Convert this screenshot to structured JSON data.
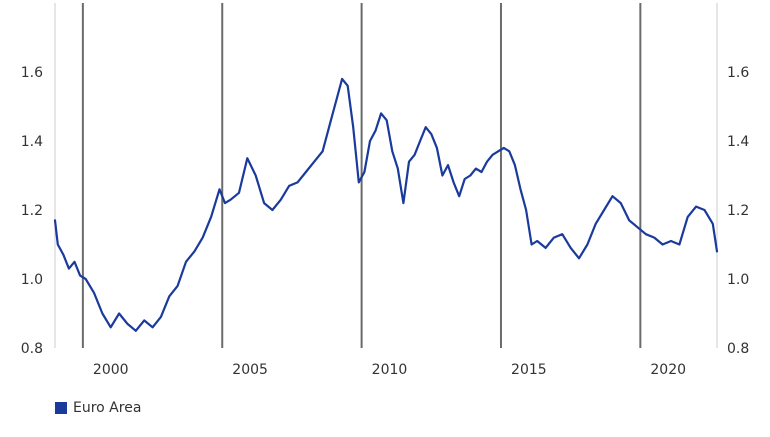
{
  "chart_data": {
    "type": "line",
    "title": "",
    "xlabel": "",
    "ylabel": "",
    "xlim": [
      1998.0,
      2021.75
    ],
    "ylim": [
      0.8,
      1.8
    ],
    "yticks": [
      0.8,
      1.0,
      1.2,
      1.4,
      1.6
    ],
    "ytick_labels": [
      "0.8",
      "1.0",
      "1.2",
      "1.4",
      "1.6"
    ],
    "xticks": [
      2000,
      2005,
      2010,
      2015,
      2020
    ],
    "xtick_labels": [
      "2000",
      "2005",
      "2010",
      "2015",
      "2020"
    ],
    "vertical_markers": [
      1999.0,
      2004.0,
      2009.0,
      2014.0,
      2019.0
    ],
    "grid": false,
    "legend_position": "bottom-left",
    "series": [
      {
        "name": "Euro Area",
        "color": "#1a3a9c",
        "x": [
          1998.0,
          1998.1,
          1998.3,
          1998.5,
          1998.7,
          1998.9,
          1999.1,
          1999.4,
          1999.7,
          2000.0,
          2000.3,
          2000.6,
          2000.9,
          2001.2,
          2001.5,
          2001.8,
          2002.1,
          2002.4,
          2002.7,
          2003.0,
          2003.3,
          2003.6,
          2003.9,
          2004.1,
          2004.3,
          2004.6,
          2004.9,
          2005.2,
          2005.5,
          2005.8,
          2006.1,
          2006.4,
          2006.7,
          2007.0,
          2007.3,
          2007.6,
          2007.9,
          2008.1,
          2008.3,
          2008.5,
          2008.7,
          2008.9,
          2009.1,
          2009.3,
          2009.5,
          2009.7,
          2009.9,
          2010.1,
          2010.3,
          2010.5,
          2010.7,
          2010.9,
          2011.1,
          2011.3,
          2011.5,
          2011.7,
          2011.9,
          2012.1,
          2012.3,
          2012.5,
          2012.7,
          2012.9,
          2013.1,
          2013.3,
          2013.5,
          2013.7,
          2013.9,
          2014.1,
          2014.3,
          2014.5,
          2014.7,
          2014.9,
          2015.1,
          2015.3,
          2015.6,
          2015.9,
          2016.2,
          2016.5,
          2016.8,
          2017.1,
          2017.4,
          2017.7,
          2018.0,
          2018.3,
          2018.6,
          2018.9,
          2019.2,
          2019.5,
          2019.8,
          2020.1,
          2020.4,
          2020.7,
          2021.0,
          2021.3,
          2021.6,
          2021.75
        ],
        "y": [
          1.17,
          1.1,
          1.07,
          1.03,
          1.05,
          1.01,
          1.0,
          0.96,
          0.9,
          0.86,
          0.9,
          0.87,
          0.85,
          0.88,
          0.86,
          0.89,
          0.95,
          0.98,
          1.05,
          1.08,
          1.12,
          1.18,
          1.26,
          1.22,
          1.23,
          1.25,
          1.35,
          1.3,
          1.22,
          1.2,
          1.23,
          1.27,
          1.28,
          1.31,
          1.34,
          1.37,
          1.46,
          1.52,
          1.58,
          1.56,
          1.44,
          1.28,
          1.31,
          1.4,
          1.43,
          1.48,
          1.46,
          1.37,
          1.32,
          1.22,
          1.34,
          1.36,
          1.4,
          1.44,
          1.42,
          1.38,
          1.3,
          1.33,
          1.28,
          1.24,
          1.29,
          1.3,
          1.32,
          1.31,
          1.34,
          1.36,
          1.37,
          1.38,
          1.37,
          1.33,
          1.26,
          1.2,
          1.1,
          1.11,
          1.09,
          1.12,
          1.13,
          1.09,
          1.06,
          1.1,
          1.16,
          1.2,
          1.24,
          1.22,
          1.17,
          1.15,
          1.13,
          1.12,
          1.1,
          1.11,
          1.1,
          1.18,
          1.21,
          1.2,
          1.16,
          1.08
        ]
      }
    ],
    "legend": [
      {
        "label": "Euro Area",
        "color": "#1a3a9c"
      }
    ]
  }
}
